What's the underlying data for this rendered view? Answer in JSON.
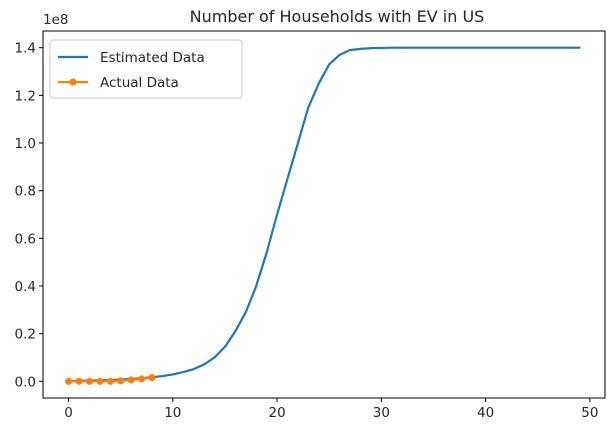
{
  "chart_data": {
    "type": "line",
    "title": "Number of Households with EV in US",
    "xlabel": "",
    "ylabel": "",
    "y_offset_text": "1e8",
    "xlim": [
      -2.45,
      51.45
    ],
    "ylim": [
      -0.07,
      1.47
    ],
    "x_ticks": [
      0,
      10,
      20,
      30,
      40,
      50
    ],
    "x_tick_labels": [
      "0",
      "10",
      "20",
      "30",
      "40",
      "50"
    ],
    "y_ticks": [
      0.0,
      0.2,
      0.4,
      0.6,
      0.8,
      1.0,
      1.2,
      1.4
    ],
    "y_tick_labels": [
      "0.0",
      "0.2",
      "0.4",
      "0.6",
      "0.8",
      "1.0",
      "1.2",
      "1.4"
    ],
    "grid": false,
    "legend_position": "upper-left",
    "series": [
      {
        "name": "Estimated Data",
        "color": "#1f77b4",
        "marker": "none",
        "x": [
          0,
          1,
          2,
          3,
          4,
          5,
          6,
          7,
          8,
          9,
          10,
          11,
          12,
          13,
          14,
          15,
          16,
          17,
          18,
          19,
          20,
          21,
          22,
          23,
          24,
          25,
          26,
          27,
          28,
          29,
          30,
          31,
          32,
          33,
          34,
          35,
          36,
          37,
          38,
          39,
          40,
          41,
          42,
          43,
          44,
          45,
          46,
          47,
          48,
          49
        ],
        "values": [
          0.001,
          0.002,
          0.003,
          0.004,
          0.005,
          0.007,
          0.01,
          0.013,
          0.017,
          0.022,
          0.029,
          0.039,
          0.051,
          0.071,
          0.1,
          0.145,
          0.21,
          0.29,
          0.4,
          0.54,
          0.7,
          0.85,
          1.0,
          1.15,
          1.25,
          1.33,
          1.37,
          1.39,
          1.395,
          1.398,
          1.399,
          1.4,
          1.4,
          1.4,
          1.4,
          1.4,
          1.4,
          1.4,
          1.4,
          1.4,
          1.4,
          1.4,
          1.4,
          1.4,
          1.4,
          1.4,
          1.4,
          1.4,
          1.4,
          1.4
        ]
      },
      {
        "name": "Actual Data",
        "color": "#ff7f0e",
        "marker": "circle",
        "x": [
          0,
          1,
          2,
          3,
          4,
          5,
          6,
          7,
          8
        ],
        "values": [
          0.0,
          0.0,
          0.0,
          0.0,
          0.0,
          0.002,
          0.006,
          0.01,
          0.016
        ]
      }
    ]
  }
}
